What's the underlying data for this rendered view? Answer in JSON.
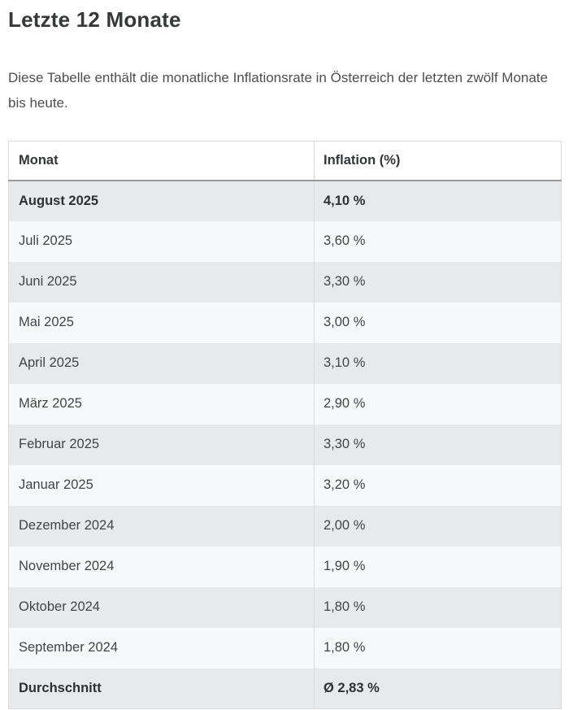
{
  "page": {
    "title": "Letzte 12 Monate",
    "description": "Diese Tabelle enthält die monatliche Inflationsrate in Österreich der letzten zwölf Monate bis heute."
  },
  "table": {
    "columns": [
      "Monat",
      "Inflation (%)"
    ],
    "rows": [
      {
        "month": "August 2025",
        "value": "4,10 %",
        "bold": true
      },
      {
        "month": "Juli 2025",
        "value": "3,60 %",
        "bold": false
      },
      {
        "month": "Juni 2025",
        "value": "3,30 %",
        "bold": false
      },
      {
        "month": "Mai 2025",
        "value": "3,00 %",
        "bold": false
      },
      {
        "month": "April 2025",
        "value": "3,10 %",
        "bold": false
      },
      {
        "month": "März 2025",
        "value": "2,90 %",
        "bold": false
      },
      {
        "month": "Februar 2025",
        "value": "3,30 %",
        "bold": false
      },
      {
        "month": "Januar 2025",
        "value": "3,20 %",
        "bold": false
      },
      {
        "month": "Dezember 2024",
        "value": "2,00 %",
        "bold": false
      },
      {
        "month": "November 2024",
        "value": "1,90 %",
        "bold": false
      },
      {
        "month": "Oktober 2024",
        "value": "1,80 %",
        "bold": false
      },
      {
        "month": "September 2024",
        "value": "1,80 %",
        "bold": false
      },
      {
        "month": "Durchschnitt",
        "value": "Ø 2,83 %",
        "bold": true
      }
    ]
  },
  "chart_data": {
    "type": "table",
    "title": "Letzte 12 Monate",
    "categories": [
      "August 2025",
      "Juli 2025",
      "Juni 2025",
      "Mai 2025",
      "April 2025",
      "März 2025",
      "Februar 2025",
      "Januar 2025",
      "Dezember 2024",
      "November 2024",
      "Oktober 2024",
      "September 2024"
    ],
    "values": [
      4.1,
      3.6,
      3.3,
      3.0,
      3.1,
      2.9,
      3.3,
      3.2,
      2.0,
      1.9,
      1.8,
      1.8
    ],
    "average": 2.83,
    "ylabel": "Inflation (%)"
  },
  "colors": {
    "row_stripe": "#e8e9eb",
    "row_plain": "#f7f8f9",
    "table_border": "#d9dbdd",
    "header_rule": "#97999c",
    "title_text": "#363839"
  }
}
